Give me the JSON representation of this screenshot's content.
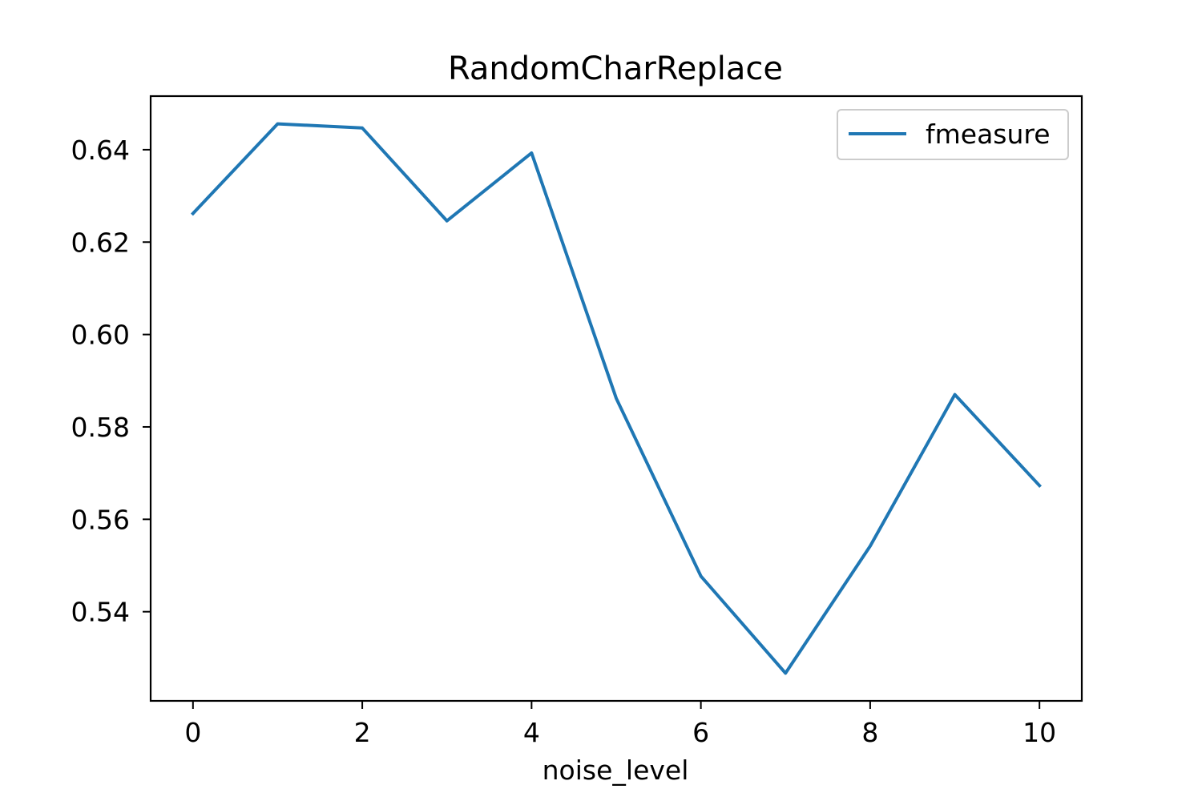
{
  "chart_data": {
    "type": "line",
    "title": "RandomCharReplace",
    "xlabel": "noise_level",
    "ylabel": "",
    "x": [
      0,
      1,
      2,
      3,
      4,
      5,
      6,
      7,
      8,
      9,
      10
    ],
    "series": [
      {
        "name": "fmeasure",
        "values": [
          0.6262,
          0.6456,
          0.6447,
          0.6246,
          0.6393,
          0.5862,
          0.5477,
          0.5267,
          0.5542,
          0.587,
          0.5673
        ],
        "color": "#1f77b4"
      }
    ],
    "xlim": [
      -0.5,
      10.5
    ],
    "ylim": [
      0.5207,
      0.6516
    ],
    "xticks": [
      0,
      2,
      4,
      6,
      8,
      10
    ],
    "xtick_labels": [
      "0",
      "2",
      "4",
      "6",
      "8",
      "10"
    ],
    "yticks": [
      0.54,
      0.56,
      0.58,
      0.6,
      0.62,
      0.64
    ],
    "ytick_labels": [
      "0.54",
      "0.56",
      "0.58",
      "0.60",
      "0.62",
      "0.64"
    ],
    "grid": false,
    "legend_position": "top-right"
  }
}
